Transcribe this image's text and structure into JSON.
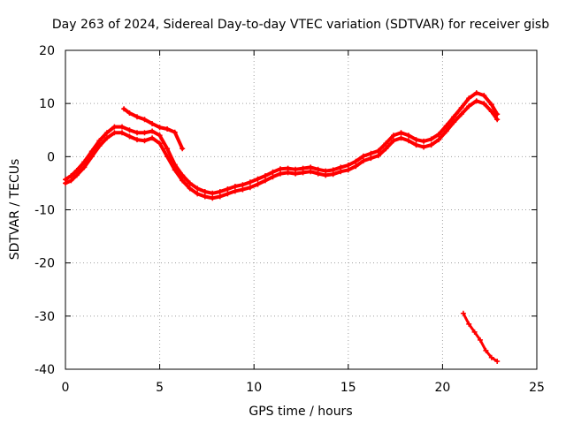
{
  "chart_data": {
    "type": "line",
    "title": "Day 263 of 2024, Sidereal Day-to-day VTEC variation (SDTVAR) for receiver gisb",
    "xlabel": "GPS time / hours",
    "ylabel": "SDTVAR / TECUs",
    "xlim": [
      0,
      25
    ],
    "ylim": [
      -40,
      20
    ],
    "xticks": [
      0,
      5,
      10,
      15,
      20,
      25
    ],
    "yticks": [
      -40,
      -30,
      -20,
      -10,
      0,
      10,
      20
    ],
    "xtick_labels": [
      "0",
      "5",
      "10",
      "15",
      "20",
      "25"
    ],
    "ytick_labels": [
      "-40",
      "-30",
      "-20",
      "-10",
      "0",
      "10",
      "20"
    ],
    "grid": true,
    "legend": "none",
    "series_color": "#ff0000",
    "series": [
      {
        "name": "main trace (lower band)",
        "x": [
          0.0,
          0.3,
          0.6,
          1.0,
          1.4,
          1.8,
          2.2,
          2.6,
          3.0,
          3.4,
          3.8,
          4.2,
          4.6,
          5.0,
          5.4,
          5.8,
          6.2,
          6.6,
          7.0,
          7.4,
          7.8,
          8.2,
          8.6,
          9.0,
          9.4,
          9.8,
          10.2,
          10.6,
          11.0,
          11.4,
          11.8,
          12.2,
          12.6,
          13.0,
          13.4,
          13.8,
          14.2,
          14.6,
          15.0,
          15.4,
          15.8,
          16.2,
          16.6,
          17.0,
          17.4,
          17.8,
          18.2,
          18.6,
          19.0,
          19.4,
          19.8,
          20.2,
          20.6,
          21.0,
          21.4,
          21.8,
          22.2,
          22.6,
          22.9
        ],
        "y": [
          -5.0,
          -4.5,
          -3.5,
          -2.0,
          0.0,
          2.0,
          3.5,
          4.5,
          4.5,
          3.8,
          3.2,
          3.0,
          3.5,
          2.5,
          0.0,
          -2.5,
          -4.5,
          -6.0,
          -7.0,
          -7.5,
          -7.8,
          -7.5,
          -7.0,
          -6.5,
          -6.2,
          -5.8,
          -5.2,
          -4.5,
          -3.8,
          -3.2,
          -3.0,
          -3.2,
          -3.0,
          -2.8,
          -3.2,
          -3.5,
          -3.3,
          -2.8,
          -2.5,
          -1.8,
          -0.8,
          -0.3,
          0.2,
          1.5,
          3.0,
          3.5,
          3.0,
          2.2,
          1.8,
          2.2,
          3.2,
          4.8,
          6.5,
          8.0,
          9.5,
          10.5,
          10.0,
          8.5,
          7.0
        ]
      },
      {
        "name": "main trace (upper band)",
        "x": [
          0.0,
          0.3,
          0.6,
          1.0,
          1.4,
          1.8,
          2.2,
          2.6,
          3.0,
          3.4,
          3.8,
          4.2,
          4.6,
          5.0,
          5.4,
          5.8,
          6.2,
          6.6,
          7.0,
          7.4,
          7.8,
          8.2,
          8.6,
          9.0,
          9.4,
          9.8,
          10.2,
          10.6,
          11.0,
          11.4,
          11.8,
          12.2,
          12.6,
          13.0,
          13.4,
          13.8,
          14.2,
          14.6,
          15.0,
          15.4,
          15.8,
          16.2,
          16.6,
          17.0,
          17.4,
          17.8,
          18.2,
          18.6,
          19.0,
          19.4,
          19.8,
          20.2,
          20.6,
          21.0,
          21.4,
          21.8,
          22.2,
          22.6,
          22.9
        ],
        "y": [
          -4.3,
          -3.6,
          -2.6,
          -1.0,
          1.0,
          3.0,
          4.5,
          5.6,
          5.6,
          5.0,
          4.5,
          4.5,
          4.8,
          4.0,
          1.5,
          -1.5,
          -3.5,
          -5.0,
          -6.0,
          -6.6,
          -6.9,
          -6.6,
          -6.1,
          -5.6,
          -5.3,
          -4.8,
          -4.2,
          -3.6,
          -2.9,
          -2.3,
          -2.2,
          -2.4,
          -2.2,
          -2.0,
          -2.4,
          -2.7,
          -2.5,
          -2.0,
          -1.6,
          -0.9,
          0.1,
          0.6,
          1.1,
          2.5,
          4.0,
          4.5,
          4.0,
          3.2,
          2.9,
          3.3,
          4.2,
          5.8,
          7.5,
          9.2,
          11.0,
          12.0,
          11.5,
          9.8,
          8.0
        ]
      },
      {
        "name": "overlapping segment near 3-6.2 h",
        "x": [
          3.1,
          3.4,
          3.8,
          4.2,
          4.6,
          5.0,
          5.4,
          5.8,
          6.2
        ],
        "y": [
          9.0,
          8.2,
          7.5,
          7.0,
          6.2,
          5.5,
          5.2,
          4.6,
          1.5
        ]
      },
      {
        "name": "secondary segment at end",
        "x": [
          21.1,
          21.4,
          21.7,
          22.0,
          22.3,
          22.6,
          22.9
        ],
        "y": [
          -29.5,
          -31.5,
          -33.0,
          -34.5,
          -36.5,
          -37.8,
          -38.5
        ]
      }
    ]
  }
}
